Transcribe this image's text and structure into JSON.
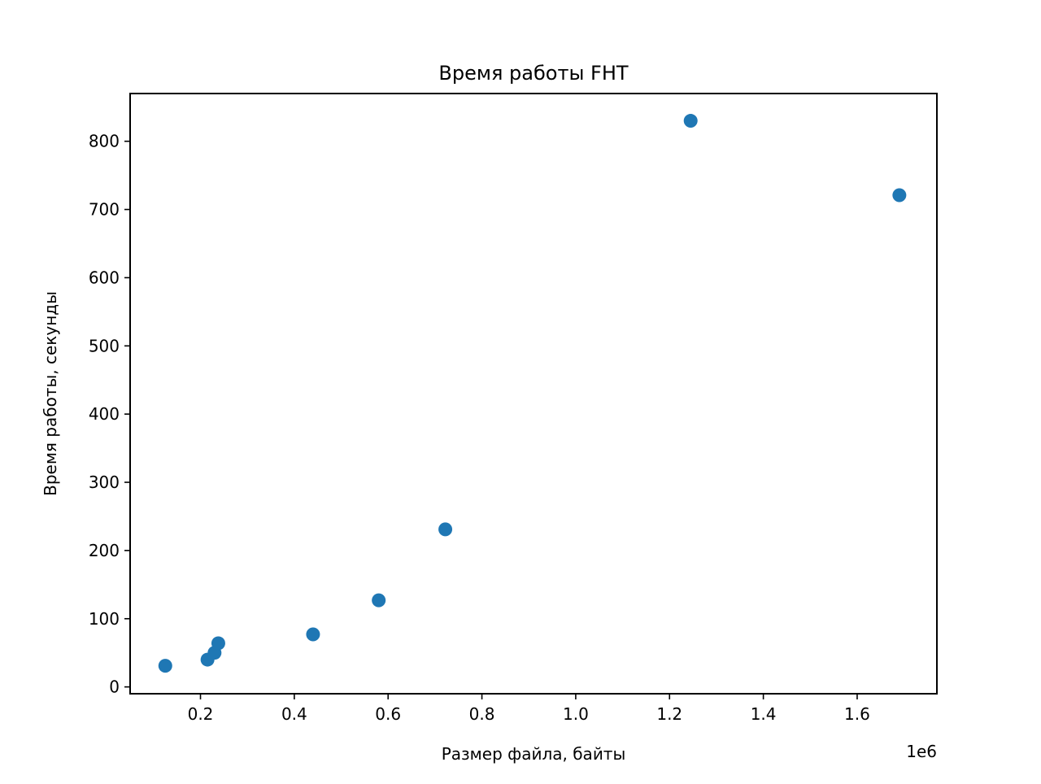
{
  "colors": {
    "marker": "#1f77b4",
    "axes": "#000000",
    "background": "#ffffff"
  },
  "chart_data": {
    "type": "scatter",
    "title": "Время работы FHT",
    "xlabel": "Размер файла, байты",
    "ylabel": "Время работы, секунды",
    "x_offset_label": "1e6",
    "xlim": [
      0.05,
      1.77
    ],
    "ylim": [
      -10,
      870
    ],
    "x_ticks": [
      0.2,
      0.4,
      0.6,
      0.8,
      1.0,
      1.2,
      1.4,
      1.6
    ],
    "x_tick_labels": [
      "0.2",
      "0.4",
      "0.6",
      "0.8",
      "1.0",
      "1.2",
      "1.4",
      "1.6"
    ],
    "y_ticks": [
      0,
      100,
      200,
      300,
      400,
      500,
      600,
      700,
      800
    ],
    "y_tick_labels": [
      "0",
      "100",
      "200",
      "300",
      "400",
      "500",
      "600",
      "700",
      "800"
    ],
    "grid": false,
    "legend": "none",
    "series": [
      {
        "x": [
          0.125,
          0.215,
          0.23,
          0.238,
          0.44,
          0.58,
          0.722,
          1.245,
          1.69
        ],
        "y": [
          31,
          40,
          50,
          64,
          77,
          127,
          231,
          830,
          721
        ]
      }
    ]
  }
}
